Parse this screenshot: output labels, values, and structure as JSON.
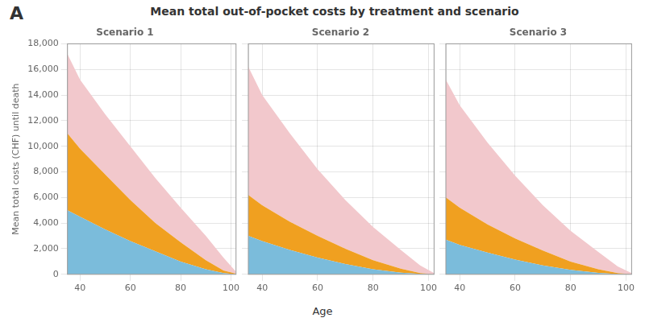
{
  "title": "Mean total out-of-pocket costs by treatment and scenario",
  "annotations": [
    "A"
  ],
  "xlabel": "Age",
  "chart_data": [
    {
      "type": "area",
      "title": "Scenario 1",
      "ylabel": "Mean total costs (CHF) until death",
      "x": [
        35,
        40,
        50,
        60,
        70,
        80,
        90,
        97,
        102
      ],
      "series": [
        {
          "color": "#7bbcdb",
          "values": [
            5000,
            4500,
            3500,
            2600,
            1800,
            1000,
            400,
            100,
            0
          ]
        },
        {
          "color": "#f0a020",
          "values": [
            11000,
            9800,
            7800,
            5800,
            4000,
            2500,
            1100,
            300,
            50
          ]
        },
        {
          "color": "#f2c8cc",
          "values": [
            17200,
            15200,
            12500,
            10000,
            7500,
            5200,
            3000,
            1300,
            200
          ]
        }
      ],
      "xlim": [
        35,
        102
      ],
      "xticks": [
        40,
        60,
        80,
        100
      ],
      "ylim": [
        0,
        18000
      ],
      "yticks": [
        0,
        {
          "value": 2000,
          "label": "2,000"
        },
        {
          "value": 4000,
          "label": "4,000"
        },
        {
          "value": 6000,
          "label": "6,000"
        },
        {
          "value": 8000,
          "label": "8,000"
        },
        {
          "value": 10000,
          "label": "10,000"
        },
        {
          "value": 12000,
          "label": "12,000"
        },
        {
          "value": 14000,
          "label": "14,000"
        },
        {
          "value": 16000,
          "label": "16,000"
        },
        {
          "value": 18000,
          "label": "18,000"
        }
      ],
      "grid": true
    },
    {
      "type": "area",
      "title": "Scenario 2",
      "x": [
        35,
        40,
        50,
        60,
        70,
        80,
        90,
        97,
        102
      ],
      "series": [
        {
          "color": "#7bbcdb",
          "values": [
            3000,
            2600,
            1900,
            1300,
            800,
            400,
            130,
            30,
            0
          ]
        },
        {
          "color": "#f0a020",
          "values": [
            6200,
            5400,
            4100,
            3000,
            2000,
            1100,
            450,
            100,
            10
          ]
        },
        {
          "color": "#f2c8cc",
          "values": [
            16200,
            14000,
            11000,
            8200,
            5800,
            3700,
            1900,
            700,
            100
          ]
        }
      ],
      "xlim": [
        35,
        102
      ],
      "xticks": [
        40,
        60,
        80,
        100
      ],
      "ylim": [
        0,
        18000
      ],
      "yticks": [
        0,
        2000,
        4000,
        6000,
        8000,
        10000,
        12000,
        14000,
        16000,
        18000
      ],
      "tick_labels": "x",
      "grid": true
    },
    {
      "type": "area",
      "title": "Scenario 3",
      "x": [
        35,
        40,
        50,
        60,
        70,
        80,
        90,
        97,
        102
      ],
      "series": [
        {
          "color": "#7bbcdb",
          "values": [
            2700,
            2300,
            1700,
            1150,
            700,
            350,
            110,
            25,
            0
          ]
        },
        {
          "color": "#f0a020",
          "values": [
            6000,
            5200,
            3900,
            2800,
            1850,
            1000,
            400,
            90,
            10
          ]
        },
        {
          "color": "#f2c8cc",
          "values": [
            15200,
            13200,
            10300,
            7700,
            5400,
            3400,
            1750,
            620,
            90
          ]
        }
      ],
      "xlim": [
        35,
        102
      ],
      "xticks": [
        40,
        60,
        80,
        100
      ],
      "ylim": [
        0,
        18000
      ],
      "yticks": [
        0,
        2000,
        4000,
        6000,
        8000,
        10000,
        12000,
        14000,
        16000,
        18000
      ],
      "tick_labels": "x",
      "grid": true
    }
  ]
}
